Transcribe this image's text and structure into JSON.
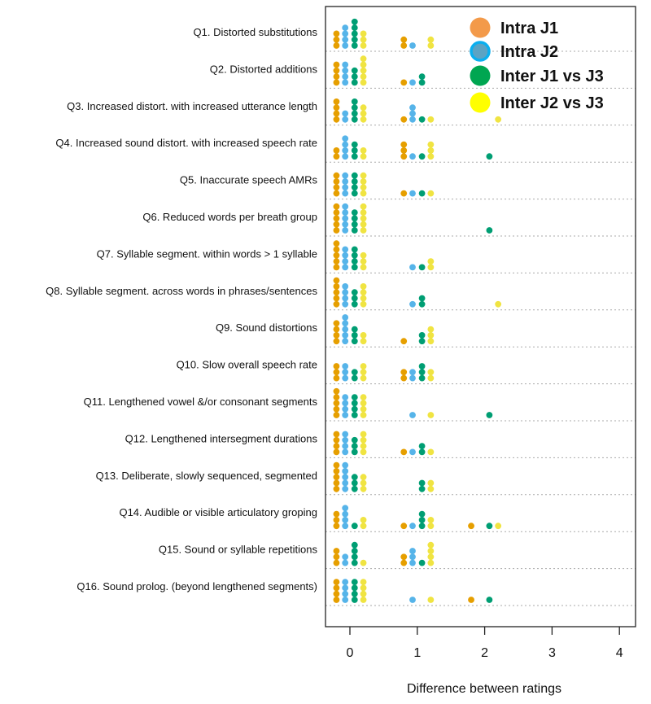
{
  "chart_data": {
    "type": "scatter",
    "subtype": "stacked-dot-plot",
    "xlabel": "Difference between ratings",
    "ylabel": "",
    "xlim": [
      -0.3,
      4
    ],
    "x_ticks": [
      "0",
      "1",
      "2",
      "3",
      "4"
    ],
    "values_x": [
      0,
      1,
      2,
      3,
      4
    ],
    "legend_position": "top-right",
    "series": [
      {
        "name": "Intra J1",
        "color": "#E69F00",
        "legend_color": "#F39A4A",
        "offset": -0.2
      },
      {
        "name": "Intra J2",
        "color": "#56B4E9",
        "legend_color": "#5BA3C4",
        "legend_ring": "#0AAFEF",
        "offset": -0.07
      },
      {
        "name": "Inter J1 vs J3",
        "color": "#009E73",
        "legend_color": "#00A651",
        "offset": 0.07
      },
      {
        "name": "Inter J2 vs J3",
        "color": "#F0E442",
        "legend_color": "#FFFF00",
        "offset": 0.2
      }
    ],
    "questions": [
      {
        "label": "Q1.  Distorted substitutions",
        "counts": [
          [
            3,
            2,
            0,
            0,
            0
          ],
          [
            4,
            1,
            0,
            0,
            0
          ],
          [
            5,
            0,
            0,
            0,
            0
          ],
          [
            3,
            2,
            0,
            0,
            0
          ]
        ]
      },
      {
        "label": "Q2.  Distorted additions",
        "counts": [
          [
            4,
            1,
            0,
            0,
            0
          ],
          [
            4,
            1,
            0,
            0,
            0
          ],
          [
            3,
            2,
            0,
            0,
            0
          ],
          [
            5,
            0,
            0,
            0,
            0
          ]
        ]
      },
      {
        "label": "Q3.  Increased distort. with increased utterance length",
        "counts": [
          [
            4,
            1,
            0,
            0,
            0
          ],
          [
            2,
            3,
            0,
            0,
            0
          ],
          [
            4,
            1,
            0,
            0,
            0
          ],
          [
            3,
            1,
            1,
            0,
            0
          ]
        ]
      },
      {
        "label": "Q4.  Increased sound distort. with increased speech rate",
        "counts": [
          [
            2,
            3,
            0,
            0,
            0
          ],
          [
            4,
            1,
            0,
            0,
            0
          ],
          [
            3,
            1,
            1,
            0,
            0
          ],
          [
            2,
            3,
            0,
            0,
            0
          ]
        ]
      },
      {
        "label": "Q5.  Inaccurate speech AMRs",
        "counts": [
          [
            4,
            1,
            0,
            0,
            0
          ],
          [
            4,
            1,
            0,
            0,
            0
          ],
          [
            4,
            1,
            0,
            0,
            0
          ],
          [
            4,
            1,
            0,
            0,
            0
          ]
        ]
      },
      {
        "label": "Q6.  Reduced words per breath group",
        "counts": [
          [
            5,
            0,
            0,
            0,
            0
          ],
          [
            5,
            0,
            0,
            0,
            0
          ],
          [
            4,
            0,
            1,
            0,
            0
          ],
          [
            5,
            0,
            0,
            0,
            0
          ]
        ]
      },
      {
        "label": "Q7.  Syllable segment. within words > 1 syllable",
        "counts": [
          [
            5,
            0,
            0,
            0,
            0
          ],
          [
            4,
            1,
            0,
            0,
            0
          ],
          [
            4,
            1,
            0,
            0,
            0
          ],
          [
            3,
            2,
            0,
            0,
            0
          ]
        ]
      },
      {
        "label": "Q8.  Syllable segment. across words in phrases/sentences",
        "counts": [
          [
            5,
            0,
            0,
            0,
            0
          ],
          [
            4,
            1,
            0,
            0,
            0
          ],
          [
            3,
            2,
            0,
            0,
            0
          ],
          [
            4,
            0,
            1,
            0,
            0
          ]
        ]
      },
      {
        "label": "Q9.  Sound distortions",
        "counts": [
          [
            4,
            1,
            0,
            0,
            0
          ],
          [
            5,
            0,
            0,
            0,
            0
          ],
          [
            3,
            2,
            0,
            0,
            0
          ],
          [
            2,
            3,
            0,
            0,
            0
          ]
        ]
      },
      {
        "label": "Q10.  Slow overall speech rate",
        "counts": [
          [
            3,
            2,
            0,
            0,
            0
          ],
          [
            3,
            2,
            0,
            0,
            0
          ],
          [
            2,
            3,
            0,
            0,
            0
          ],
          [
            3,
            2,
            0,
            0,
            0
          ]
        ]
      },
      {
        "label": "Q11.  Lengthened vowel &/or consonant segments",
        "counts": [
          [
            5,
            0,
            0,
            0,
            0
          ],
          [
            4,
            1,
            0,
            0,
            0
          ],
          [
            4,
            0,
            1,
            0,
            0
          ],
          [
            4,
            1,
            0,
            0,
            0
          ]
        ]
      },
      {
        "label": "Q12.  Lengthened intersegment durations",
        "counts": [
          [
            4,
            1,
            0,
            0,
            0
          ],
          [
            4,
            1,
            0,
            0,
            0
          ],
          [
            3,
            2,
            0,
            0,
            0
          ],
          [
            4,
            1,
            0,
            0,
            0
          ]
        ]
      },
      {
        "label": "Q13.  Deliberate, slowly sequenced, segmented",
        "counts": [
          [
            5,
            0,
            0,
            0,
            0
          ],
          [
            5,
            0,
            0,
            0,
            0
          ],
          [
            3,
            2,
            0,
            0,
            0
          ],
          [
            3,
            2,
            0,
            0,
            0
          ]
        ]
      },
      {
        "label": "Q14.  Audible or visible articulatory groping",
        "counts": [
          [
            3,
            1,
            1,
            0,
            0
          ],
          [
            4,
            1,
            0,
            0,
            0
          ],
          [
            1,
            3,
            1,
            0,
            0
          ],
          [
            2,
            2,
            1,
            0,
            0
          ]
        ]
      },
      {
        "label": "Q15.  Sound or syllable repetitions",
        "counts": [
          [
            3,
            2,
            0,
            0,
            0
          ],
          [
            2,
            3,
            0,
            0,
            0
          ],
          [
            4,
            1,
            0,
            0,
            0
          ],
          [
            1,
            4,
            0,
            0,
            0
          ]
        ]
      },
      {
        "label": "Q16.  Sound prolog. (beyond lengthened segments)",
        "counts": [
          [
            4,
            0,
            1,
            0,
            0
          ],
          [
            4,
            1,
            0,
            0,
            0
          ],
          [
            4,
            0,
            1,
            0,
            0
          ],
          [
            4,
            1,
            0,
            0,
            0
          ]
        ]
      }
    ]
  }
}
